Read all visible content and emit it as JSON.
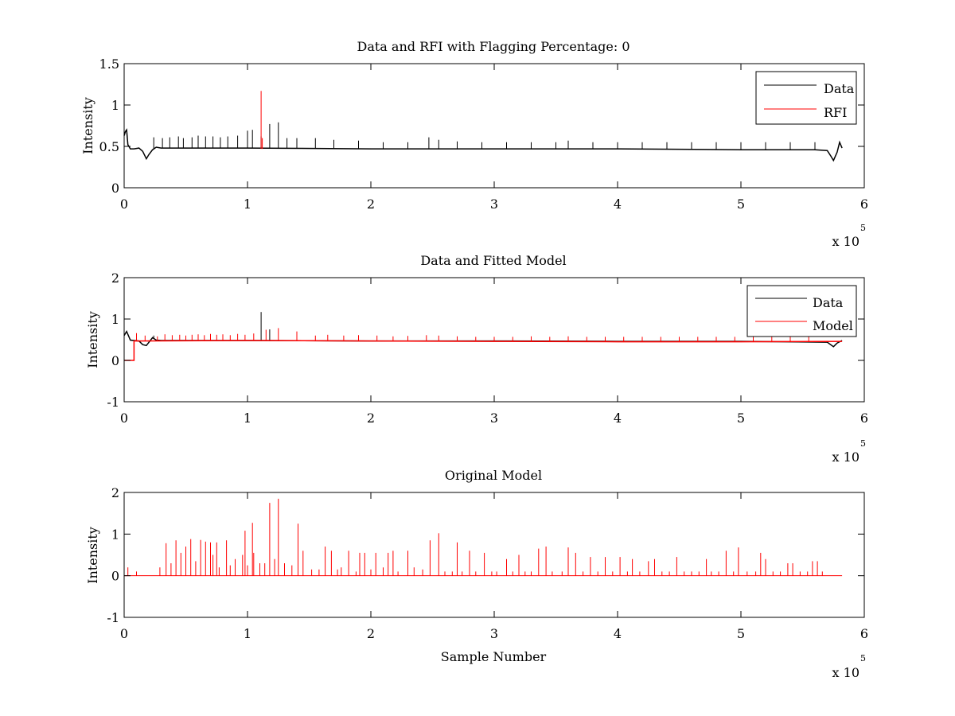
{
  "figure": {
    "background": "#ffffff"
  },
  "chart_data": [
    {
      "type": "line",
      "title": "Data and RFI with Flagging Percentage: 0",
      "xlabel": "",
      "ylabel": "Intensity",
      "xlim": [
        0,
        6
      ],
      "ylim": [
        0,
        1.5
      ],
      "xticks": [
        "0",
        "1",
        "2",
        "3",
        "4",
        "5",
        "6"
      ],
      "yticks": [
        "0",
        "0.5",
        "1",
        "1.5"
      ],
      "x_exponent_label": "x 10",
      "x_exponent_power": "5",
      "legend": {
        "position": "top-right",
        "entries": [
          "Data",
          "RFI"
        ]
      },
      "series": [
        {
          "name": "Data",
          "color": "#000000",
          "kind": "line",
          "x": [
            0,
            0.01,
            0.02,
            0.03,
            0.05,
            0.08,
            0.12,
            0.15,
            0.18,
            0.2,
            0.23,
            0.26,
            0.3,
            1.0,
            2.0,
            3.0,
            4.0,
            5.0,
            5.6,
            5.7,
            5.73,
            5.75,
            5.78,
            5.8,
            5.82
          ],
          "y": [
            0.63,
            0.68,
            0.7,
            0.52,
            0.47,
            0.47,
            0.48,
            0.44,
            0.35,
            0.4,
            0.46,
            0.49,
            0.48,
            0.48,
            0.47,
            0.47,
            0.47,
            0.46,
            0.46,
            0.45,
            0.38,
            0.33,
            0.43,
            0.55,
            0.48
          ],
          "spikes": [
            [
              0.24,
              0.61
            ],
            [
              0.31,
              0.6
            ],
            [
              0.37,
              0.61
            ],
            [
              0.44,
              0.62
            ],
            [
              0.48,
              0.6
            ],
            [
              0.55,
              0.61
            ],
            [
              0.6,
              0.63
            ],
            [
              0.66,
              0.62
            ],
            [
              0.72,
              0.62
            ],
            [
              0.78,
              0.61
            ],
            [
              0.84,
              0.62
            ],
            [
              0.92,
              0.63
            ],
            [
              1.0,
              0.69
            ],
            [
              1.04,
              0.7
            ],
            [
              1.11,
              0.62
            ],
            [
              1.18,
              0.77
            ],
            [
              1.25,
              0.79
            ],
            [
              1.32,
              0.6
            ],
            [
              1.4,
              0.6
            ],
            [
              1.55,
              0.6
            ],
            [
              1.7,
              0.58
            ],
            [
              1.9,
              0.57
            ],
            [
              2.1,
              0.55
            ],
            [
              2.3,
              0.55
            ],
            [
              2.47,
              0.61
            ],
            [
              2.55,
              0.58
            ],
            [
              2.7,
              0.56
            ],
            [
              2.9,
              0.55
            ],
            [
              3.1,
              0.55
            ],
            [
              3.3,
              0.55
            ],
            [
              3.5,
              0.55
            ],
            [
              3.6,
              0.57
            ],
            [
              3.8,
              0.55
            ],
            [
              4.0,
              0.55
            ],
            [
              4.2,
              0.55
            ],
            [
              4.4,
              0.55
            ],
            [
              4.6,
              0.55
            ],
            [
              4.8,
              0.55
            ],
            [
              5.0,
              0.55
            ],
            [
              5.2,
              0.55
            ],
            [
              5.4,
              0.55
            ],
            [
              5.6,
              0.55
            ]
          ]
        },
        {
          "name": "RFI",
          "color": "#ff0000",
          "kind": "spikes",
          "spikes": [
            [
              1.11,
              1.17
            ],
            [
              1.12,
              0.6
            ]
          ]
        }
      ]
    },
    {
      "type": "line",
      "title": "Data and Fitted Model",
      "xlabel": "",
      "ylabel": "Intensity",
      "xlim": [
        0,
        6
      ],
      "ylim": [
        -1,
        2
      ],
      "xticks": [
        "0",
        "1",
        "2",
        "3",
        "4",
        "5",
        "6"
      ],
      "yticks": [
        "-1",
        "0",
        "1",
        "2"
      ],
      "x_exponent_label": "x 10",
      "x_exponent_power": "5",
      "legend": {
        "position": "top-right",
        "entries": [
          "Data",
          "Model"
        ]
      },
      "series": [
        {
          "name": "Data",
          "color": "#000000",
          "kind": "line",
          "x": [
            0,
            0.02,
            0.05,
            0.12,
            0.15,
            0.18,
            0.23,
            0.26,
            0.3,
            1.0,
            2.0,
            3.0,
            4.0,
            5.0,
            5.7,
            5.75,
            5.78,
            5.82
          ],
          "y": [
            0.6,
            0.7,
            0.49,
            0.47,
            0.38,
            0.36,
            0.55,
            0.49,
            0.48,
            0.48,
            0.47,
            0.47,
            0.46,
            0.46,
            0.44,
            0.33,
            0.42,
            0.48
          ],
          "spikes": [
            [
              1.11,
              1.17
            ],
            [
              0.24,
              0.6
            ],
            [
              1.18,
              0.75
            ]
          ]
        },
        {
          "name": "Model",
          "color": "#ff0000",
          "kind": "line",
          "x": [
            0,
            0.08,
            0.08,
            0.1,
            1.0,
            2.0,
            3.0,
            4.0,
            5.0,
            5.82
          ],
          "y": [
            0.0,
            0.0,
            0.47,
            0.47,
            0.48,
            0.47,
            0.46,
            0.45,
            0.45,
            0.46
          ],
          "spikes": [
            [
              0.1,
              0.66
            ],
            [
              0.17,
              0.6
            ],
            [
              0.27,
              0.58
            ],
            [
              0.33,
              0.63
            ],
            [
              0.39,
              0.61
            ],
            [
              0.45,
              0.62
            ],
            [
              0.5,
              0.6
            ],
            [
              0.55,
              0.62
            ],
            [
              0.6,
              0.63
            ],
            [
              0.65,
              0.61
            ],
            [
              0.7,
              0.64
            ],
            [
              0.75,
              0.62
            ],
            [
              0.8,
              0.63
            ],
            [
              0.86,
              0.61
            ],
            [
              0.92,
              0.64
            ],
            [
              0.98,
              0.62
            ],
            [
              1.05,
              0.65
            ],
            [
              1.15,
              0.74
            ],
            [
              1.25,
              0.78
            ],
            [
              1.4,
              0.7
            ],
            [
              1.55,
              0.6
            ],
            [
              1.65,
              0.62
            ],
            [
              1.78,
              0.6
            ],
            [
              1.9,
              0.61
            ],
            [
              2.05,
              0.6
            ],
            [
              2.18,
              0.58
            ],
            [
              2.3,
              0.59
            ],
            [
              2.45,
              0.61
            ],
            [
              2.55,
              0.6
            ],
            [
              2.7,
              0.58
            ],
            [
              2.85,
              0.57
            ],
            [
              3.0,
              0.57
            ],
            [
              3.15,
              0.57
            ],
            [
              3.3,
              0.58
            ],
            [
              3.45,
              0.57
            ],
            [
              3.6,
              0.58
            ],
            [
              3.75,
              0.57
            ],
            [
              3.9,
              0.57
            ],
            [
              4.05,
              0.57
            ],
            [
              4.2,
              0.57
            ],
            [
              4.35,
              0.57
            ],
            [
              4.5,
              0.57
            ],
            [
              4.65,
              0.57
            ],
            [
              4.8,
              0.57
            ],
            [
              4.95,
              0.57
            ],
            [
              5.1,
              0.57
            ],
            [
              5.25,
              0.57
            ],
            [
              5.4,
              0.57
            ],
            [
              5.55,
              0.57
            ]
          ]
        }
      ]
    },
    {
      "type": "line",
      "title": "Original Model",
      "xlabel": "Sample Number",
      "ylabel": "Intensity",
      "xlim": [
        0,
        6
      ],
      "ylim": [
        -1,
        2
      ],
      "xticks": [
        "0",
        "1",
        "2",
        "3",
        "4",
        "5",
        "6"
      ],
      "yticks": [
        "-1",
        "0",
        "1",
        "2"
      ],
      "x_exponent_label": "x 10",
      "x_exponent_power": "5",
      "legend": null,
      "series": [
        {
          "name": "",
          "color": "#ff0000",
          "kind": "spikes",
          "baseline": 0,
          "x_end": 5.82,
          "spikes": [
            [
              0.03,
              0.2
            ],
            [
              0.1,
              0.1
            ],
            [
              0.29,
              0.2
            ],
            [
              0.34,
              0.78
            ],
            [
              0.38,
              0.3
            ],
            [
              0.42,
              0.85
            ],
            [
              0.46,
              0.55
            ],
            [
              0.5,
              0.7
            ],
            [
              0.54,
              0.88
            ],
            [
              0.58,
              0.35
            ],
            [
              0.62,
              0.86
            ],
            [
              0.66,
              0.82
            ],
            [
              0.7,
              0.8
            ],
            [
              0.72,
              0.5
            ],
            [
              0.75,
              0.8
            ],
            [
              0.77,
              0.2
            ],
            [
              0.83,
              0.85
            ],
            [
              0.86,
              0.25
            ],
            [
              0.9,
              0.4
            ],
            [
              0.96,
              0.5
            ],
            [
              0.98,
              1.08
            ],
            [
              1.0,
              0.25
            ],
            [
              1.04,
              1.27
            ],
            [
              1.05,
              0.55
            ],
            [
              1.1,
              0.3
            ],
            [
              1.14,
              0.3
            ],
            [
              1.18,
              1.75
            ],
            [
              1.22,
              0.4
            ],
            [
              1.25,
              1.85
            ],
            [
              1.3,
              0.3
            ],
            [
              1.36,
              0.25
            ],
            [
              1.41,
              1.25
            ],
            [
              1.45,
              0.6
            ],
            [
              1.52,
              0.15
            ],
            [
              1.58,
              0.15
            ],
            [
              1.63,
              0.7
            ],
            [
              1.68,
              0.6
            ],
            [
              1.73,
              0.15
            ],
            [
              1.76,
              0.2
            ],
            [
              1.82,
              0.6
            ],
            [
              1.88,
              0.1
            ],
            [
              1.91,
              0.55
            ],
            [
              1.95,
              0.55
            ],
            [
              2.0,
              0.15
            ],
            [
              2.04,
              0.55
            ],
            [
              2.1,
              0.2
            ],
            [
              2.14,
              0.55
            ],
            [
              2.18,
              0.6
            ],
            [
              2.22,
              0.1
            ],
            [
              2.3,
              0.6
            ],
            [
              2.35,
              0.2
            ],
            [
              2.42,
              0.15
            ],
            [
              2.48,
              0.85
            ],
            [
              2.55,
              1.02
            ],
            [
              2.6,
              0.1
            ],
            [
              2.66,
              0.1
            ],
            [
              2.7,
              0.8
            ],
            [
              2.74,
              0.1
            ],
            [
              2.8,
              0.6
            ],
            [
              2.85,
              0.1
            ],
            [
              2.92,
              0.55
            ],
            [
              2.98,
              0.1
            ],
            [
              3.02,
              0.1
            ],
            [
              3.1,
              0.4
            ],
            [
              3.15,
              0.1
            ],
            [
              3.2,
              0.5
            ],
            [
              3.25,
              0.1
            ],
            [
              3.3,
              0.1
            ],
            [
              3.36,
              0.65
            ],
            [
              3.42,
              0.7
            ],
            [
              3.47,
              0.1
            ],
            [
              3.55,
              0.1
            ],
            [
              3.6,
              0.68
            ],
            [
              3.66,
              0.55
            ],
            [
              3.72,
              0.1
            ],
            [
              3.78,
              0.45
            ],
            [
              3.84,
              0.1
            ],
            [
              3.9,
              0.45
            ],
            [
              3.96,
              0.1
            ],
            [
              4.02,
              0.45
            ],
            [
              4.08,
              0.1
            ],
            [
              4.12,
              0.4
            ],
            [
              4.18,
              0.1
            ],
            [
              4.25,
              0.35
            ],
            [
              4.3,
              0.4
            ],
            [
              4.36,
              0.1
            ],
            [
              4.42,
              0.1
            ],
            [
              4.48,
              0.45
            ],
            [
              4.54,
              0.1
            ],
            [
              4.6,
              0.1
            ],
            [
              4.66,
              0.1
            ],
            [
              4.72,
              0.4
            ],
            [
              4.76,
              0.1
            ],
            [
              4.82,
              0.1
            ],
            [
              4.88,
              0.6
            ],
            [
              4.94,
              0.1
            ],
            [
              4.98,
              0.68
            ],
            [
              5.05,
              0.1
            ],
            [
              5.12,
              0.1
            ],
            [
              5.16,
              0.55
            ],
            [
              5.2,
              0.4
            ],
            [
              5.26,
              0.1
            ],
            [
              5.32,
              0.1
            ],
            [
              5.38,
              0.3
            ],
            [
              5.42,
              0.3
            ],
            [
              5.48,
              0.1
            ],
            [
              5.54,
              0.1
            ],
            [
              5.58,
              0.35
            ],
            [
              5.62,
              0.35
            ],
            [
              5.66,
              0.1
            ]
          ]
        }
      ]
    }
  ]
}
